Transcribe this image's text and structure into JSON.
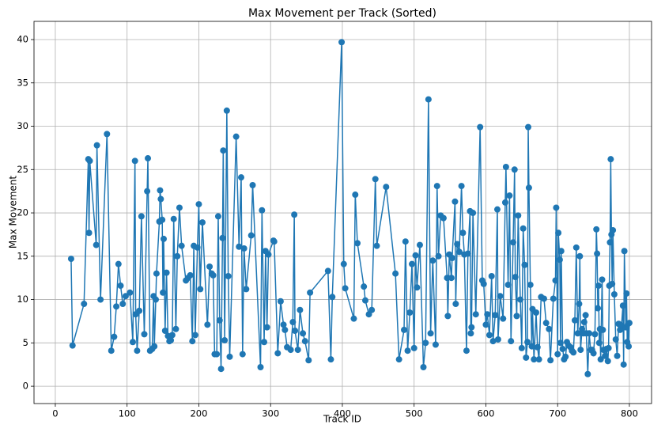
{
  "chart_data": {
    "type": "line",
    "title": "Max Movement per Track (Sorted)",
    "xlabel": "Track ID",
    "ylabel": "Max Movement",
    "xlim": [
      -29.7,
      830.9
    ],
    "ylim": [
      -2.0,
      42.1
    ],
    "xticks": [
      0,
      100,
      200,
      300,
      400,
      500,
      600,
      700,
      800
    ],
    "yticks": [
      0,
      5,
      10,
      15,
      20,
      25,
      30,
      35,
      40
    ],
    "grid": true,
    "marker": "circle",
    "series": [
      {
        "name": "Max Movement",
        "color": "#1f77b4",
        "x": [
          22,
          24,
          40,
          46,
          47,
          48,
          57,
          58,
          63,
          72,
          78,
          82,
          85,
          88,
          91,
          94,
          98,
          104,
          108,
          111,
          112,
          114,
          117,
          120,
          124,
          128,
          129,
          132,
          135,
          137,
          138,
          140,
          141,
          145,
          146,
          147,
          149,
          150,
          151,
          153,
          155,
          157,
          159,
          161,
          163,
          165,
          168,
          170,
          173,
          176,
          182,
          185,
          188,
          191,
          193,
          195,
          198,
          200,
          202,
          205,
          212,
          215,
          218,
          220,
          222,
          225,
          227,
          229,
          231,
          233,
          234,
          236,
          239,
          241,
          243,
          252,
          256,
          259,
          261,
          263,
          266,
          273,
          275,
          286,
          288,
          291,
          293,
          295,
          297,
          304,
          305,
          310,
          314,
          318,
          320,
          323,
          328,
          331,
          333,
          334,
          338,
          341,
          345,
          348,
          353,
          355,
          380,
          384,
          386,
          399,
          402,
          404,
          416,
          418,
          421,
          430,
          432,
          437,
          441,
          446,
          448,
          461,
          474,
          479,
          486,
          488,
          491,
          494,
          497,
          500,
          502,
          504,
          508,
          513,
          516,
          520,
          523,
          526,
          530,
          532,
          534,
          537,
          541,
          546,
          547,
          549,
          552,
          553,
          557,
          558,
          560,
          563,
          566,
          568,
          570,
          573,
          575,
          578,
          579,
          580,
          582,
          586,
          592,
          595,
          597,
          600,
          602,
          605,
          608,
          610,
          613,
          616,
          617,
          620,
          624,
          627,
          628,
          631,
          633,
          635,
          638,
          640,
          641,
          643,
          645,
          648,
          650,
          652,
          654,
          656,
          658,
          659,
          660,
          662,
          664,
          665,
          667,
          670,
          672,
          674,
          677,
          681,
          684,
          688,
          690,
          694,
          697,
          698,
          700,
          701,
          703,
          704,
          705,
          707,
          709,
          711,
          713,
          715,
          718,
          720,
          722,
          724,
          726,
          728,
          730,
          731,
          732,
          734,
          736,
          737,
          739,
          740,
          742,
          744,
          746,
          748,
          750,
          752,
          754,
          755,
          756,
          757,
          758,
          759,
          760,
          762,
          763,
          764,
          766,
          768,
          770,
          771,
          772,
          773,
          774,
          775,
          776,
          777,
          779,
          781,
          783,
          785,
          787,
          789,
          791,
          792,
          793,
          795,
          796,
          797,
          798,
          799,
          800
        ],
        "values": [
          14.7,
          4.7,
          9.5,
          26.2,
          17.7,
          26.0,
          16.3,
          27.8,
          10.0,
          29.1,
          4.1,
          5.7,
          9.2,
          14.1,
          11.6,
          9.5,
          10.4,
          10.8,
          5.1,
          26.0,
          8.3,
          4.1,
          8.7,
          19.6,
          6.0,
          22.5,
          26.3,
          4.1,
          4.3,
          10.4,
          4.6,
          10.0,
          13.0,
          19.0,
          22.6,
          21.6,
          19.2,
          10.8,
          17.0,
          6.4,
          13.1,
          5.8,
          5.2,
          5.3,
          5.9,
          19.3,
          6.6,
          15.0,
          20.6,
          16.2,
          12.2,
          12.5,
          12.8,
          5.2,
          16.2,
          5.9,
          16.0,
          21.0,
          11.2,
          18.9,
          7.1,
          13.8,
          13.0,
          12.8,
          3.7,
          3.7,
          19.6,
          7.6,
          2.0,
          17.1,
          27.2,
          5.3,
          31.8,
          12.7,
          3.4,
          28.8,
          16.1,
          24.1,
          3.7,
          15.9,
          11.2,
          17.4,
          23.2,
          2.2,
          20.3,
          5.1,
          15.6,
          6.8,
          15.2,
          16.8,
          16.7,
          3.8,
          9.8,
          7.1,
          6.5,
          4.5,
          4.2,
          7.4,
          19.8,
          6.4,
          4.2,
          8.8,
          6.1,
          5.2,
          3.0,
          10.8,
          13.3,
          3.1,
          10.3,
          39.7,
          14.1,
          11.3,
          7.8,
          22.1,
          16.5,
          11.5,
          9.9,
          8.3,
          8.8,
          23.9,
          16.2,
          23.0,
          13.0,
          3.1,
          6.5,
          16.7,
          4.1,
          8.5,
          14.1,
          4.4,
          15.1,
          11.4,
          16.3,
          2.2,
          5.0,
          33.1,
          6.1,
          14.5,
          4.8,
          23.1,
          15.0,
          19.7,
          19.4,
          12.5,
          8.1,
          15.2,
          12.5,
          14.8,
          21.3,
          9.5,
          16.4,
          15.5,
          23.1,
          17.7,
          15.2,
          4.1,
          15.3,
          20.2,
          6.1,
          6.8,
          20.0,
          8.3,
          29.9,
          12.2,
          11.8,
          7.1,
          8.3,
          5.9,
          12.7,
          5.2,
          8.2,
          20.4,
          5.4,
          10.4,
          7.8,
          21.2,
          25.3,
          11.7,
          22.0,
          5.2,
          16.6,
          25.0,
          12.6,
          8.1,
          19.7,
          10.0,
          4.4,
          18.2,
          14.0,
          3.3,
          5.1,
          29.9,
          22.9,
          11.7,
          4.6,
          8.9,
          3.1,
          8.5,
          4.5,
          3.1,
          10.3,
          10.1,
          7.3,
          6.6,
          3.0,
          10.1,
          12.2,
          20.6,
          3.7,
          17.7,
          14.6,
          5.0,
          15.6,
          4.3,
          3.1,
          3.4,
          5.1,
          4.7,
          4.5,
          4.1,
          3.9,
          7.6,
          16.0,
          6.1,
          9.5,
          15.0,
          4.2,
          6.6,
          6.1,
          7.4,
          8.2,
          6.1,
          1.4,
          6.1,
          4.2,
          4.2,
          3.8,
          6.0,
          18.1,
          15.3,
          9.0,
          11.6,
          5.0,
          6.6,
          3.1,
          12.3,
          6.5,
          4.2,
          3.5,
          4.3,
          2.9,
          4.4,
          11.6,
          16.6,
          26.2,
          17.5,
          11.8,
          18.0,
          10.6,
          5.4,
          3.5,
          7.2,
          6.5,
          7.0,
          9.3,
          2.5,
          15.6,
          6.8,
          10.7,
          5.1,
          7.2,
          4.6,
          7.3
        ]
      }
    ]
  }
}
